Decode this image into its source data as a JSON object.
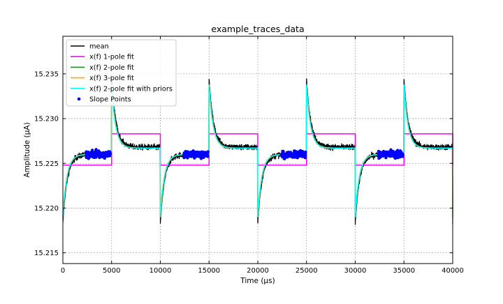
{
  "chart_data": {
    "type": "line",
    "title": "example_traces_data",
    "xlabel": "Time (μs)",
    "ylabel": "Amplitude (μA)",
    "xlim": [
      0,
      40000
    ],
    "ylim": [
      15.2138,
      15.2392
    ],
    "xticks": [
      "0",
      "5000",
      "10000",
      "15000",
      "20000",
      "25000",
      "30000",
      "35000",
      "40000"
    ],
    "xtick_values": [
      0,
      5000,
      10000,
      15000,
      20000,
      25000,
      30000,
      35000,
      40000
    ],
    "yticks": [
      "15.215",
      "15.220",
      "15.225",
      "15.230",
      "15.235"
    ],
    "ytick_values": [
      15.215,
      15.22,
      15.225,
      15.23,
      15.235
    ],
    "grid": true,
    "legend_position": "upper-left",
    "period_us": 10000,
    "step_us": 5000,
    "series": [
      {
        "name": "mean",
        "color": "#000000",
        "kind": "noisy_step_response",
        "low_level": 15.226,
        "high_level": 15.2268,
        "noise": 0.0006,
        "peak_after_rise": 15.2345,
        "trough_after_fall": 15.2183,
        "tau_us": 450
      },
      {
        "name": "x(f) 1-pole fit",
        "color": "#ff00ff",
        "kind": "square_wave",
        "low_level": 15.2248,
        "high_level": 15.2283
      },
      {
        "name": "x(f) 2-pole fit",
        "color": "#228b22",
        "kind": "step_response",
        "low_level": 15.226,
        "high_level": 15.2267,
        "peak_after_rise": 15.2338,
        "trough_after_fall": 15.219,
        "tau_us": 420
      },
      {
        "name": "x(f) 3-pole fit",
        "color": "#ffa500",
        "kind": "step_response",
        "low_level": 15.226,
        "high_level": 15.2267,
        "peak_after_rise": 15.2338,
        "trough_after_fall": 15.219,
        "tau_us": 420
      },
      {
        "name": "x(f) 2-pole fit with priors",
        "color": "#00ffff",
        "kind": "step_response",
        "low_level": 15.226,
        "high_level": 15.2267,
        "peak_after_rise": 15.2338,
        "trough_after_fall": 15.219,
        "tau_us": 420
      },
      {
        "name": "Slope Points",
        "color": "#0000ff",
        "kind": "scatter_cluster",
        "center": 15.226,
        "spread": 0.0011,
        "x_windows": [
          [
            2400,
            4900
          ],
          [
            12400,
            14900
          ],
          [
            22400,
            24900
          ],
          [
            32400,
            34900
          ]
        ]
      }
    ]
  }
}
